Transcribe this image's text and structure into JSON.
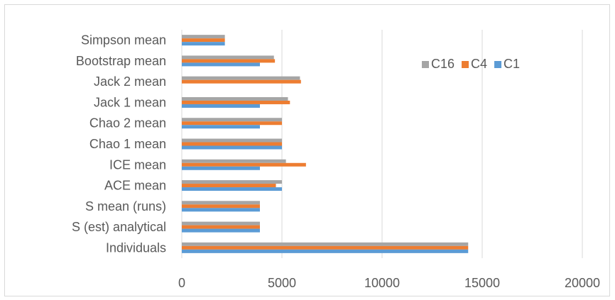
{
  "chart_data": {
    "type": "bar",
    "orientation": "horizontal",
    "categories": [
      "Simpson mean",
      "Bootstrap mean",
      "Jack 2 mean",
      "Jack 1 mean",
      "Chao 2 mean",
      "Chao 1 mean",
      "ICE mean",
      "ACE mean",
      "S mean (runs)",
      "S (est) analytical",
      "Individuals"
    ],
    "series": [
      {
        "name": "C16",
        "color": "#a5a5a5",
        "values": [
          2150,
          4600,
          5900,
          5300,
          5000,
          5000,
          5200,
          5000,
          3900,
          3900,
          14300
        ]
      },
      {
        "name": "C4",
        "color": "#ed7d31",
        "values": [
          2150,
          4650,
          5950,
          5400,
          5000,
          5000,
          6200,
          4700,
          3900,
          3900,
          14300
        ]
      },
      {
        "name": "C1",
        "color": "#5b9bd5",
        "values": [
          2150,
          3900,
          0,
          3900,
          3900,
          5000,
          3900,
          5000,
          3900,
          3900,
          14300
        ]
      }
    ],
    "xlim": [
      0,
      20000
    ],
    "xticks": [
      "0",
      "5000",
      "10000",
      "15000",
      "20000"
    ],
    "grid": "vertical",
    "legend_position": "top-right",
    "title": "",
    "xlabel": "",
    "ylabel": ""
  }
}
